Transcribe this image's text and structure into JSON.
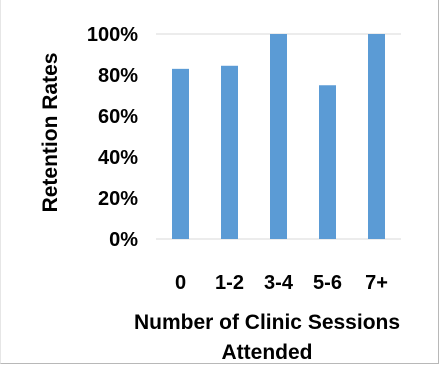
{
  "chart_data": {
    "type": "bar",
    "categories": [
      "0",
      "1-2",
      "3-4",
      "5-6",
      "7+"
    ],
    "values": [
      83,
      84.5,
      100,
      75,
      100
    ],
    "title": "",
    "xlabel_lines": [
      "Number of Clinic Sessions",
      "Attended"
    ],
    "ylabel": "Retention Rates",
    "ylim": [
      0,
      100
    ],
    "yticks": [
      0,
      20,
      40,
      60,
      80,
      100
    ],
    "ytick_labels": [
      "0%",
      "20%",
      "40%",
      "60%",
      "80%",
      "100%"
    ],
    "grid": false,
    "legend": "none",
    "bar_color": "#5b9bd5",
    "gridline_color": "#d9d9d9"
  }
}
